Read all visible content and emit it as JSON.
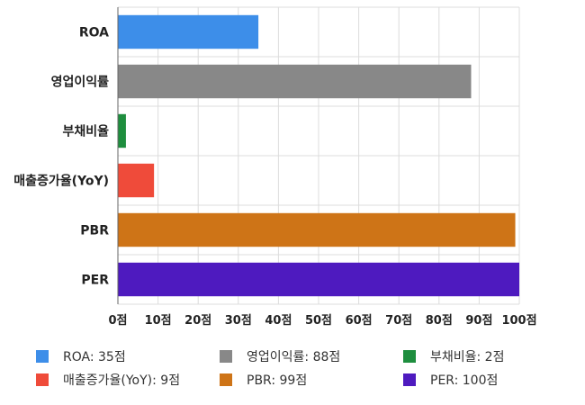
{
  "chart_data": {
    "type": "bar",
    "orientation": "horizontal",
    "categories": [
      "ROA",
      "영업이익률",
      "부채비율",
      "매출증가율(YoY)",
      "PBR",
      "PER"
    ],
    "values": [
      35,
      88,
      2,
      9,
      99,
      100
    ],
    "colors": [
      "#3d8ee9",
      "#888888",
      "#1e8e3e",
      "#ef4b3a",
      "#ce7417",
      "#4e1abf"
    ],
    "xlim": [
      0,
      100
    ],
    "xticks": [
      0,
      10,
      20,
      30,
      40,
      50,
      60,
      70,
      80,
      90,
      100
    ],
    "tick_labels": [
      "0점",
      "10점",
      "20점",
      "30점",
      "40점",
      "50점",
      "60점",
      "70점",
      "80점",
      "90점",
      "100점"
    ],
    "grid": true,
    "legend_position": "bottom",
    "legend": [
      {
        "label": "ROA: 35점",
        "color": "#3d8ee9"
      },
      {
        "label": "영업이익률: 88점",
        "color": "#888888"
      },
      {
        "label": "부채비율: 2점",
        "color": "#1e8e3e"
      },
      {
        "label": "매출증가율(YoY): 9점",
        "color": "#ef4b3a"
      },
      {
        "label": "PBR: 99점",
        "color": "#ce7417"
      },
      {
        "label": "PER: 100점",
        "color": "#4e1abf"
      }
    ],
    "title": "",
    "xlabel": "",
    "ylabel": ""
  }
}
